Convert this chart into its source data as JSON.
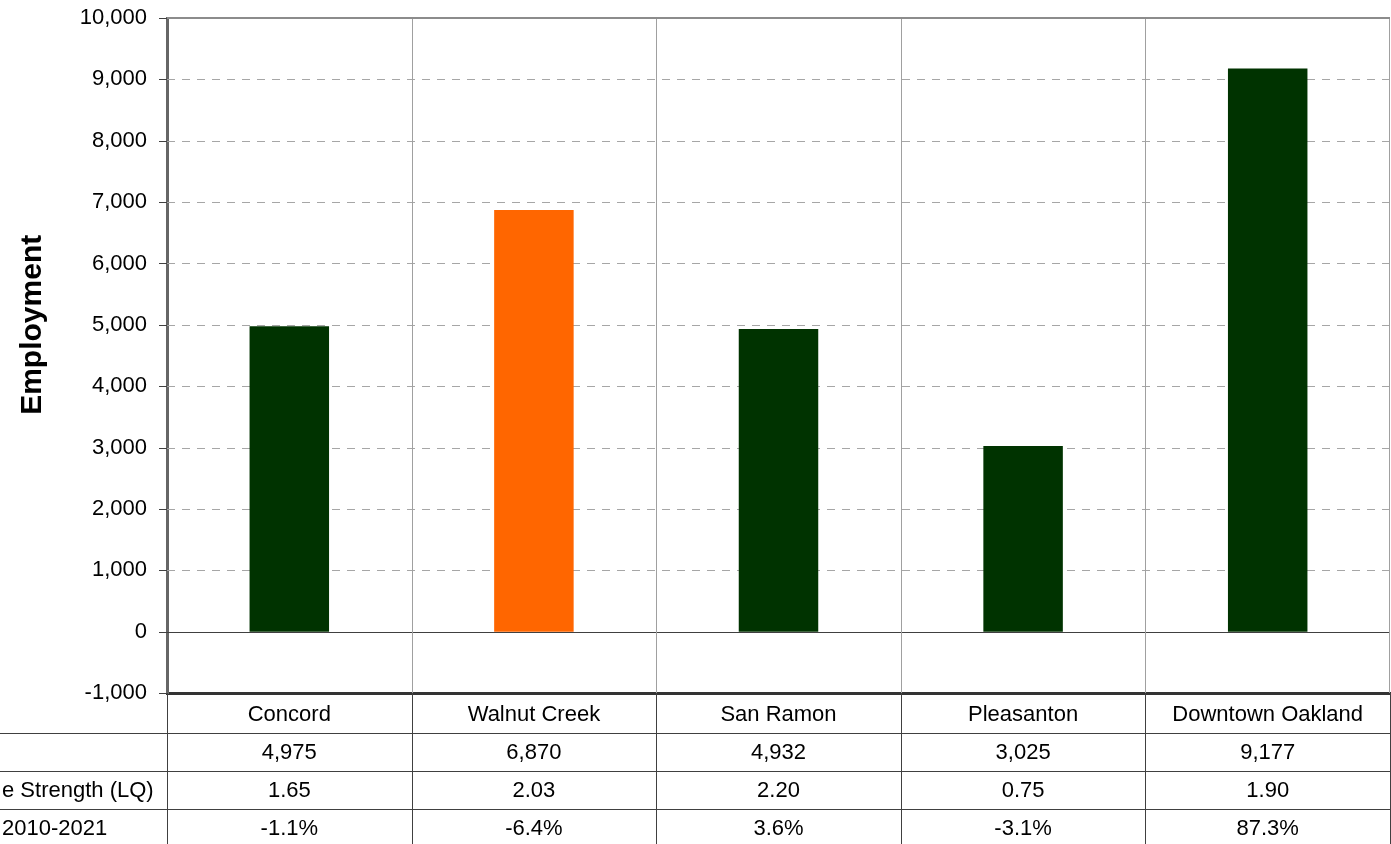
{
  "chart_data": {
    "type": "bar",
    "ylabel": "Employment",
    "categories": [
      "Concord",
      "Walnut Creek",
      "San Ramon",
      "Pleasanton",
      "Downtown Oakland"
    ],
    "values": [
      4975,
      6870,
      4932,
      3025,
      9177
    ],
    "colors": [
      "#003300",
      "#ff6600",
      "#003300",
      "#003300",
      "#003300"
    ],
    "value_labels": [
      "4,975",
      "6,870",
      "4,932",
      "3,025",
      "9,177"
    ],
    "ylim": [
      -1000,
      10000
    ],
    "yticks": [
      {
        "value": -1000,
        "label": "-1,000"
      },
      0,
      {
        "value": 1000,
        "label": "1,000"
      },
      {
        "value": 2000,
        "label": "2,000"
      },
      {
        "value": 3000,
        "label": "3,000"
      },
      {
        "value": 4000,
        "label": "4,000"
      },
      {
        "value": 5000,
        "label": "5,000"
      },
      {
        "value": 6000,
        "label": "6,000"
      },
      {
        "value": 7000,
        "label": "7,000"
      },
      {
        "value": 8000,
        "label": "8,000"
      },
      {
        "value": 9000,
        "label": "9,000"
      },
      {
        "value": 10000,
        "label": "10,000"
      }
    ],
    "grid": true,
    "annotations": [
      "e Strength (LQ)",
      "1.65",
      "2.03",
      "2.20",
      "0.75",
      "1.90",
      "2010-2021",
      "-1.1%",
      "-6.4%",
      "3.6%",
      "-3.1%",
      "87.3%"
    ]
  }
}
